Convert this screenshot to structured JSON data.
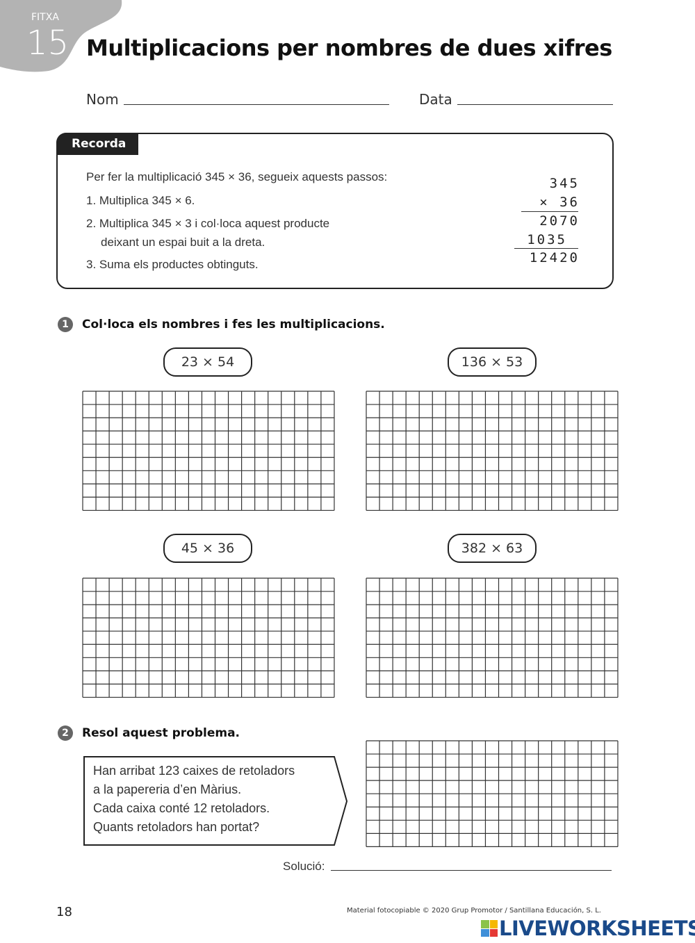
{
  "header": {
    "fitxa_label": "FITXA",
    "fitxa_number": "15",
    "title": "Multiplicacions per nombres de dues xifres",
    "name_label": "Nom",
    "date_label": "Data"
  },
  "recorda": {
    "tag": "Recorda",
    "intro": "Per fer la multiplicació 345 × 36, segueix aquests passos:",
    "step1": "1. Multiplica 345 × 6.",
    "step2a": "2. Multiplica 345 × 3 i col·loca aquest producte",
    "step2b": "deixant un espai buit a la dreta.",
    "step3": "3. Suma els productes obtinguts.",
    "example": {
      "row1": "345",
      "row2": "× 36",
      "row3": "2070",
      "row4": "1035",
      "row5": "12420"
    }
  },
  "exercise1": {
    "number": "1",
    "instruction": "Col·loca els nombres i fes les multiplicacions.",
    "operations": [
      "23 × 54",
      "136 × 53",
      "45 × 36",
      "382 × 63"
    ]
  },
  "exercise2": {
    "number": "2",
    "instruction": "Resol aquest problema.",
    "problem": [
      "Han arribat 123 caixes de retoladors",
      "a la papereria d’en Màrius.",
      "Cada caixa conté 12 retoladors.",
      "Quants retoladors han portat?"
    ],
    "solution_label": "Solució:"
  },
  "footer": {
    "page_number": "18",
    "copyright": "Material fotocopiable © 2020 Grup Promotor / Santillana Educación, S. L.",
    "brand": "LIVEWORKSHEETS",
    "brand_color": "#1a4a8a"
  }
}
